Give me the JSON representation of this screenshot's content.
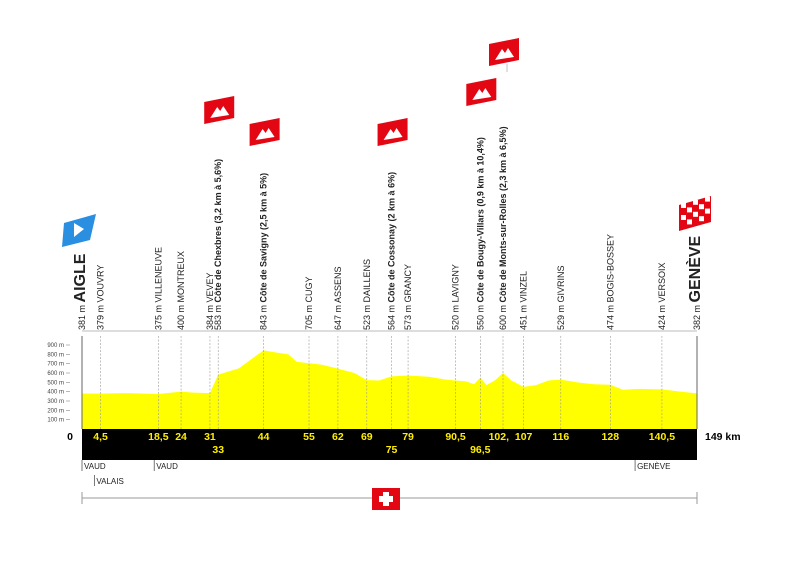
{
  "chart_data": {
    "type": "area",
    "color": "#ffff00",
    "xlim": [
      0,
      149
    ],
    "ylim": [
      0,
      900
    ],
    "yticks": [
      {
        "value": 100,
        "label": "100 m"
      },
      {
        "value": 200,
        "label": "200 m"
      },
      {
        "value": 300,
        "label": "300 m"
      },
      {
        "value": 400,
        "label": "400 m"
      },
      {
        "value": 500,
        "label": "500 m"
      },
      {
        "value": 600,
        "label": "600 m"
      },
      {
        "value": 700,
        "label": "700 m"
      },
      {
        "value": 800,
        "label": "800 m"
      },
      {
        "value": 900,
        "label": "900 m"
      }
    ],
    "x": [
      0,
      4.5,
      10,
      18.5,
      24,
      27,
      31,
      33,
      38,
      42,
      44,
      47,
      50,
      52,
      55,
      58,
      62,
      66,
      69,
      72,
      75,
      79,
      84,
      88,
      90.5,
      93,
      95,
      96.5,
      98,
      100,
      102,
      104,
      107,
      110,
      113,
      116,
      120,
      124,
      128,
      131,
      135,
      140.5,
      145,
      149
    ],
    "values": [
      381,
      379,
      385,
      375,
      400,
      390,
      384,
      583,
      650,
      780,
      843,
      820,
      800,
      720,
      705,
      690,
      647,
      600,
      523,
      520,
      564,
      573,
      560,
      530,
      520,
      510,
      480,
      550,
      470,
      520,
      600,
      520,
      451,
      470,
      520,
      529,
      500,
      480,
      474,
      420,
      430,
      424,
      400,
      382
    ],
    "waypoints": [
      {
        "km": {
          "value": 0,
          "label": "0"
        },
        "altitude": {
          "value": 381,
          "label": "381 m"
        },
        "name": "AIGLE"
      },
      {
        "km": {
          "value": 4.5,
          "label": "4,5"
        },
        "altitude": {
          "value": 379,
          "label": "379 m"
        },
        "name": "VOUVRY"
      },
      {
        "km": {
          "value": 18.5,
          "label": "18,5"
        },
        "altitude": {
          "value": 375,
          "label": "375 m"
        },
        "name": "VILLENEUVE"
      },
      {
        "km": 24,
        "altitude": {
          "value": 400,
          "label": "400 m"
        },
        "name": "MONTREUX"
      },
      {
        "km": 31,
        "altitude": {
          "value": 384,
          "label": "384 m"
        },
        "name": "VEVEY"
      },
      {
        "km": 33,
        "altitude": {
          "value": 583,
          "label": "583 m"
        },
        "climb": "Côte de Chexbres (3,2 km à 5,6%)"
      },
      {
        "km": 44,
        "altitude": {
          "value": 843,
          "label": "843 m"
        },
        "climb": "Côte de Savigny (2,5 km à 5%)"
      },
      {
        "km": 55,
        "altitude": {
          "value": 705,
          "label": "705 m"
        },
        "name": "CUGY"
      },
      {
        "km": 62,
        "altitude": {
          "value": 647,
          "label": "647 m"
        },
        "name": "ASSENS"
      },
      {
        "km": 69,
        "altitude": {
          "value": 523,
          "label": "523 m"
        },
        "name": "DAILLENS"
      },
      {
        "km": 75,
        "altitude": {
          "value": 564,
          "label": "564 m"
        },
        "climb": "Côte de Cossonay (2 km à 6%)"
      },
      {
        "km": 79,
        "altitude": {
          "value": 573,
          "label": "573 m"
        },
        "name": "GRANCY"
      },
      {
        "km": {
          "value": 90.5,
          "label": "90,5"
        },
        "altitude": {
          "value": 520,
          "label": "520 m"
        },
        "name": "LAVIGNY"
      },
      {
        "km": {
          "value": 96.5,
          "label": "96,5"
        },
        "altitude": {
          "value": 550,
          "label": "550 m"
        },
        "climb": "Côte de Bougy-Villars (0,9 km à 10,4%)"
      },
      {
        "km": {
          "value": 102,
          "label": "102,"
        },
        "altitude": {
          "value": 600,
          "label": "600 m"
        },
        "climb": "Côte de Monts-sur-Rolles (2,3 km à 6,5%)"
      },
      {
        "km": 107,
        "altitude": {
          "value": 451,
          "label": "451 m"
        },
        "name": "VINZEL"
      },
      {
        "km": 116,
        "altitude": {
          "value": 529,
          "label": "529 m"
        },
        "name": "GIVRINS"
      },
      {
        "km": 128,
        "altitude": {
          "value": 474,
          "label": "474 m"
        },
        "name": "BOGIS-BOSSEY"
      },
      {
        "km": {
          "value": 140.5,
          "label": "140,5"
        },
        "altitude": {
          "value": 424,
          "label": "424 m"
        },
        "name": "VERSOIX"
      },
      {
        "km": {
          "value": 149,
          "label": "149 km"
        },
        "altitude": {
          "value": 382,
          "label": "382 m"
        },
        "name": "GENÈVE"
      }
    ],
    "regions": [
      {
        "km": 0,
        "label": "VAUD"
      },
      {
        "km": 3,
        "label": "VALAIS"
      },
      {
        "km": 17.5,
        "label": "VAUD"
      },
      {
        "km": 134,
        "label": "GENÈVE"
      }
    ]
  }
}
